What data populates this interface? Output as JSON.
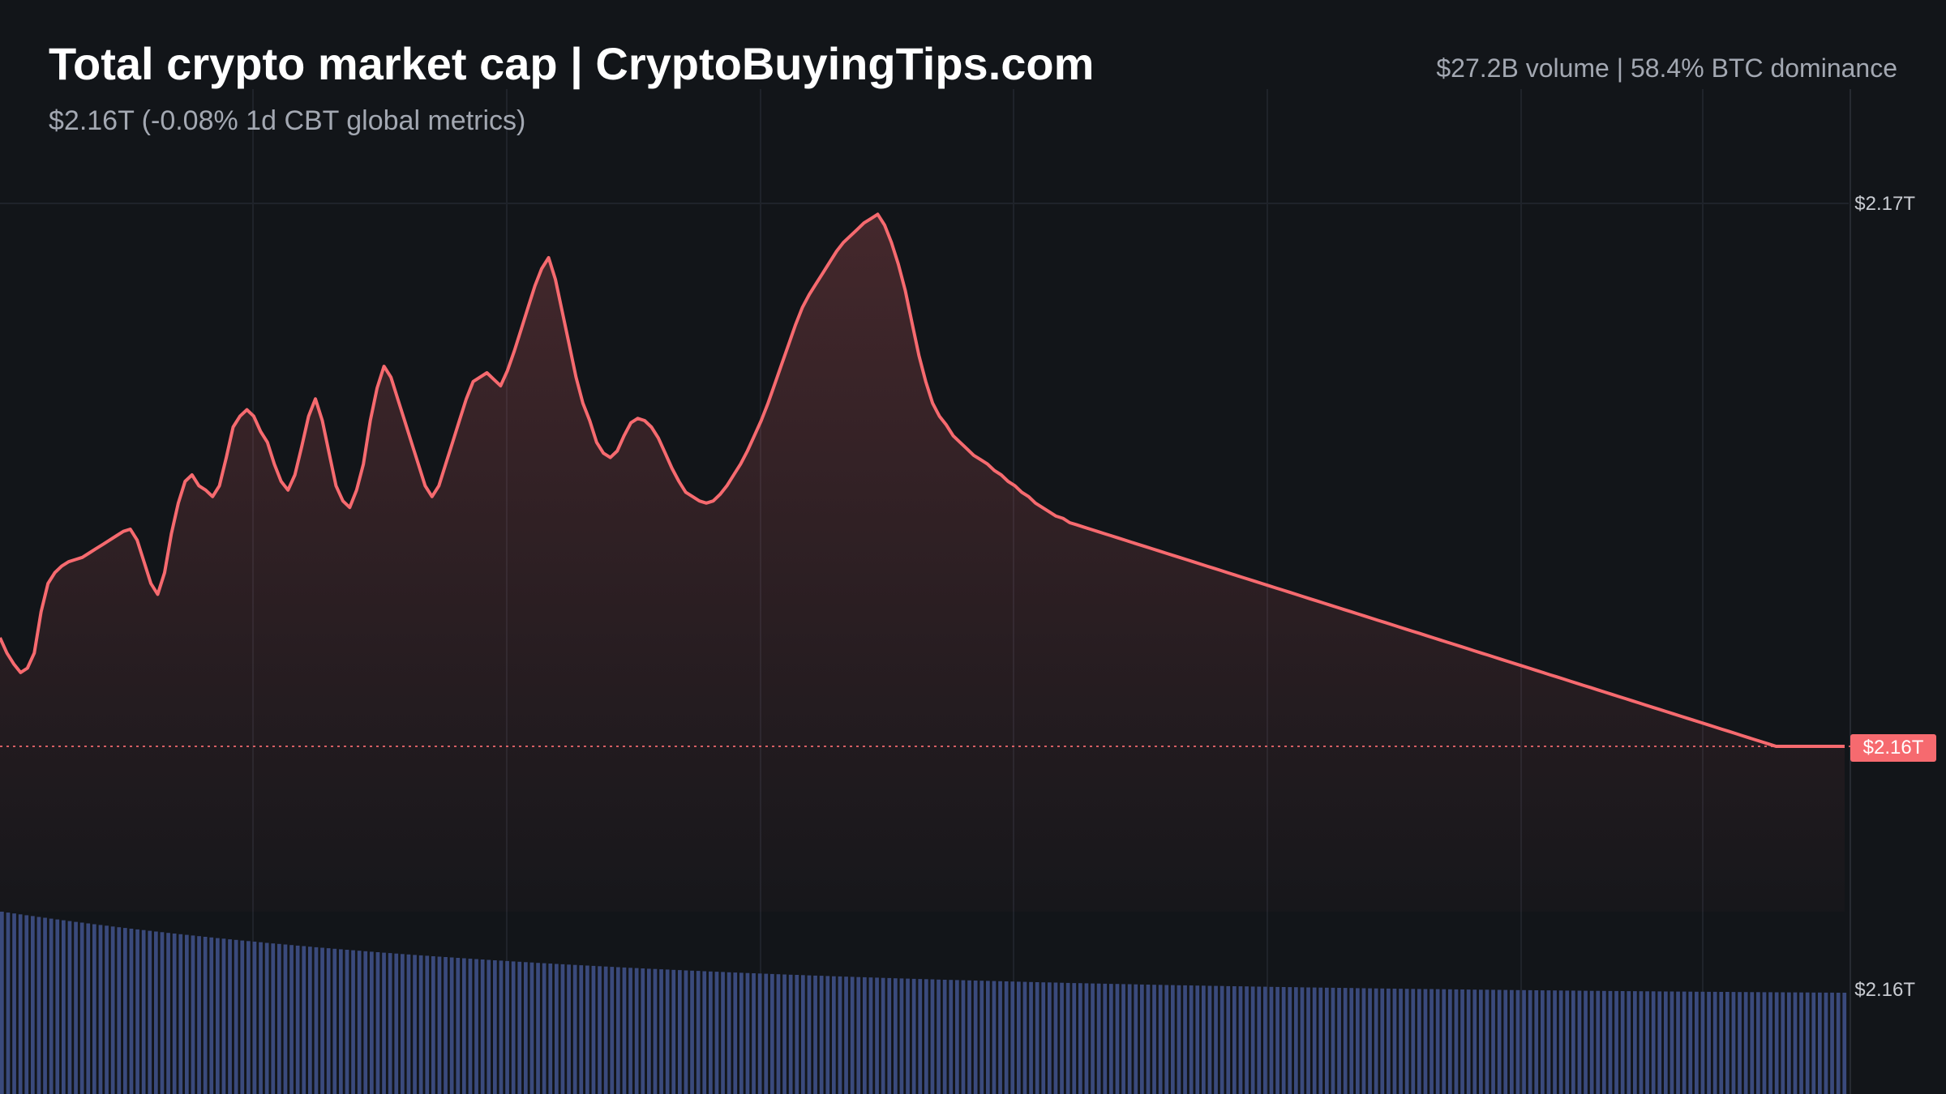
{
  "header": {
    "title": "Total crypto market cap | CryptoBuyingTips.com",
    "subtitle": "$2.16T (-0.08% 1d CBT global metrics)",
    "stats": "$27.2B volume | 58.4% BTC dominance"
  },
  "price_axis": {
    "top_label": "$2.17T",
    "current_label": "$2.16T",
    "volume_label": "$2.16T"
  },
  "colors": {
    "background": "#121519",
    "line": "#f66a6f",
    "volume": "#3a4a7c",
    "grid": "#1f232a"
  },
  "chart_data": {
    "type": "area",
    "title": "Total crypto market cap | CryptoBuyingTips.com",
    "series": [
      {
        "values": [
          0.5,
          0.43,
          0.38,
          0.34,
          0.36,
          0.43,
          0.62,
          0.75,
          0.8,
          0.83,
          0.85,
          0.86,
          0.87,
          0.89,
          0.91,
          0.93,
          0.95,
          0.97,
          0.99,
          1.0,
          0.95,
          0.85,
          0.75,
          0.7,
          0.8,
          0.98,
          1.12,
          1.22,
          1.25,
          1.2,
          1.18,
          1.15,
          1.2,
          1.33,
          1.47,
          1.52,
          1.55,
          1.52,
          1.45,
          1.4,
          1.3,
          1.22,
          1.18,
          1.25,
          1.38,
          1.52,
          1.6,
          1.5,
          1.35,
          1.2,
          1.13,
          1.1,
          1.18,
          1.3,
          1.5,
          1.65,
          1.75,
          1.7,
          1.6,
          1.5,
          1.4,
          1.3,
          1.2,
          1.15,
          1.2,
          1.3,
          1.4,
          1.5,
          1.6,
          1.68,
          1.7,
          1.72,
          1.69,
          1.66,
          1.73,
          1.82,
          1.92,
          2.02,
          2.12,
          2.2,
          2.25,
          2.15,
          2.0,
          1.85,
          1.7,
          1.58,
          1.5,
          1.4,
          1.35,
          1.33,
          1.36,
          1.43,
          1.49,
          1.51,
          1.5,
          1.47,
          1.42,
          1.35,
          1.28,
          1.22,
          1.17,
          1.15,
          1.13,
          1.12,
          1.13,
          1.16,
          1.2,
          1.25,
          1.3,
          1.36,
          1.43,
          1.5,
          1.58,
          1.67,
          1.76,
          1.85,
          1.94,
          2.02,
          2.08,
          2.13,
          2.18,
          2.23,
          2.28,
          2.32,
          2.35,
          2.38,
          2.41,
          2.43,
          2.45,
          2.4,
          2.32,
          2.22,
          2.1,
          1.95,
          1.8,
          1.68,
          1.58,
          1.52,
          1.48,
          1.43,
          1.4,
          1.37,
          1.34,
          1.32,
          1.3,
          1.27,
          1.25,
          1.22,
          1.2,
          1.17,
          1.15,
          1.12,
          1.1,
          1.08,
          1.06,
          1.05,
          1.03,
          1.02,
          1.01,
          1.0,
          0.99,
          0.98,
          0.97,
          0.96,
          0.95,
          0.94,
          0.93,
          0.92,
          0.91,
          0.9,
          0.89,
          0.88,
          0.87,
          0.86,
          0.85,
          0.84,
          0.83,
          0.82,
          0.81,
          0.8,
          0.79,
          0.78,
          0.77,
          0.76,
          0.75,
          0.74,
          0.73,
          0.72,
          0.71,
          0.7,
          0.69,
          0.68,
          0.67,
          0.66,
          0.65,
          0.64,
          0.63,
          0.62,
          0.61,
          0.6,
          0.59,
          0.58,
          0.57,
          0.56,
          0.55,
          0.54,
          0.53,
          0.52,
          0.51,
          0.5,
          0.49,
          0.48,
          0.47,
          0.46,
          0.45,
          0.44,
          0.43,
          0.42,
          0.41,
          0.4,
          0.39,
          0.38,
          0.37,
          0.36,
          0.35,
          0.34,
          0.33,
          0.32,
          0.31,
          0.3,
          0.29,
          0.28,
          0.27,
          0.26,
          0.25,
          0.24,
          0.23,
          0.22,
          0.21,
          0.2,
          0.19,
          0.18,
          0.17,
          0.16,
          0.15,
          0.14,
          0.13,
          0.12,
          0.11,
          0.1,
          0.09,
          0.08,
          0.07,
          0.06,
          0.05,
          0.04,
          0.03,
          0.02,
          0.01,
          0.0,
          0.0,
          0.0,
          0.0,
          0.0,
          0.0,
          0.0,
          0.0,
          0.0,
          0.0,
          0.0
        ]
      }
    ],
    "ylim": [
      0.0,
      2.5
    ],
    "grid": true
  }
}
